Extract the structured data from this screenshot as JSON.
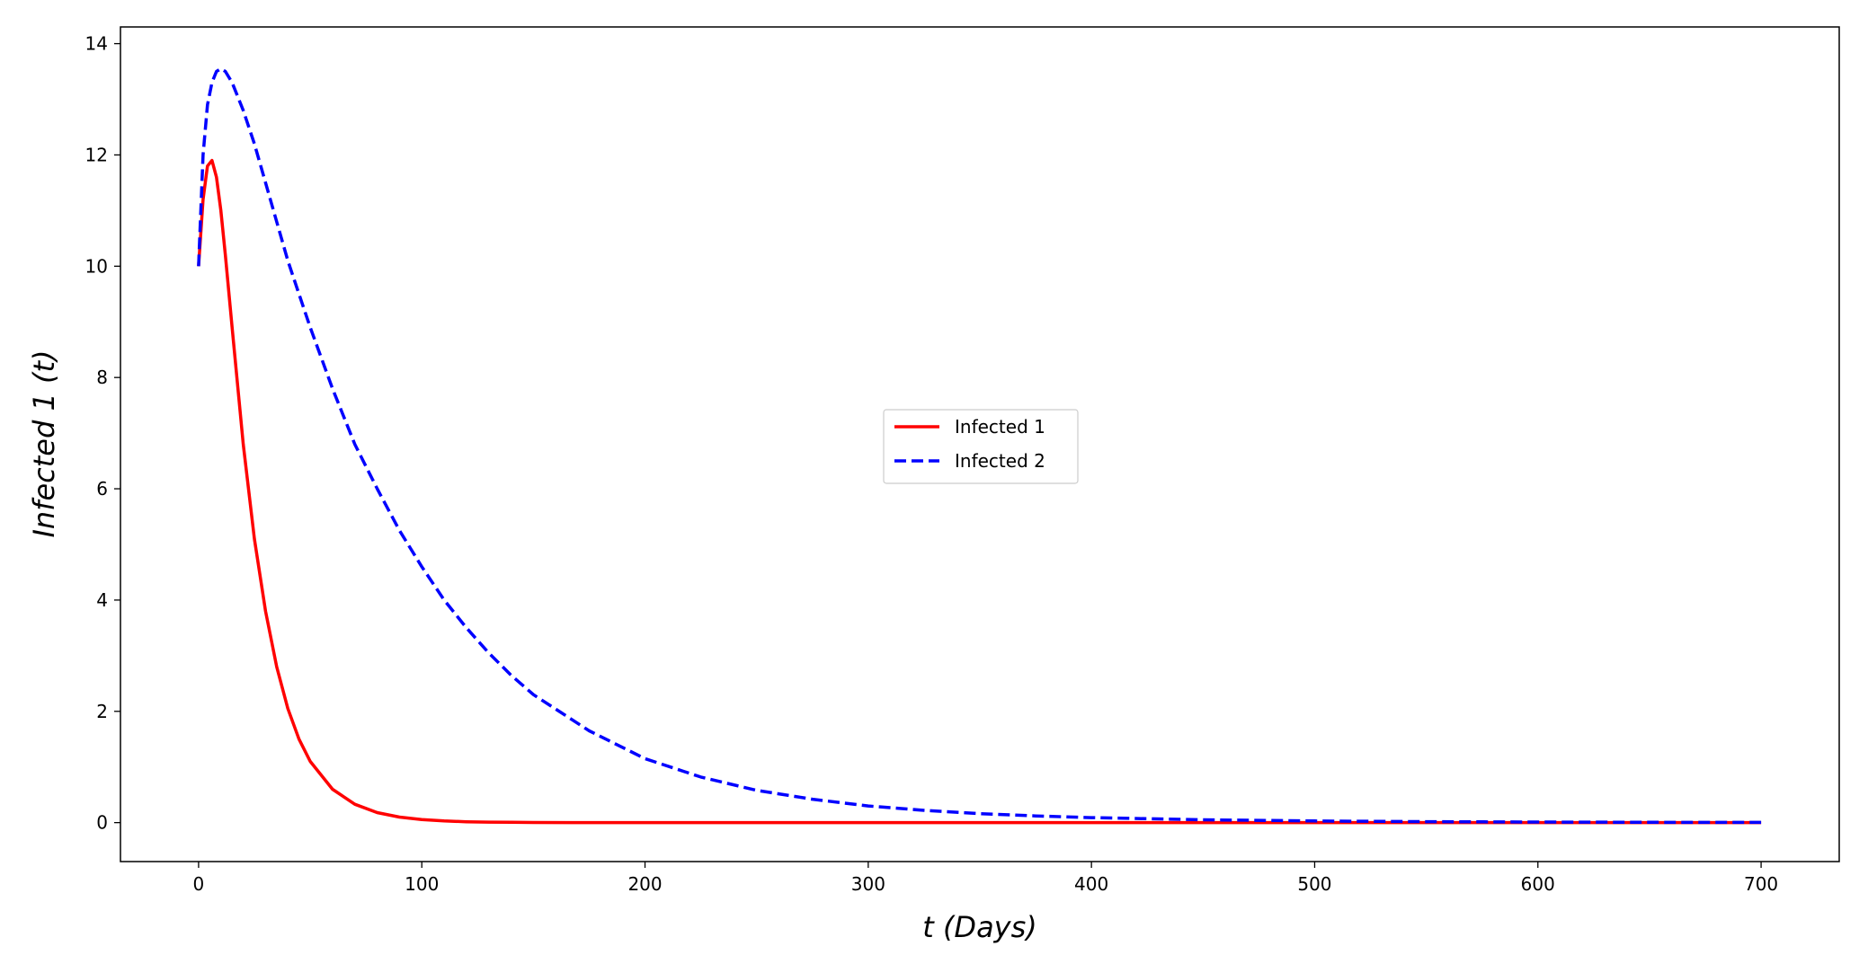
{
  "chart_data": {
    "type": "line",
    "title": "",
    "xlabel": "t (Days)",
    "ylabel": "Infected 1 (t)",
    "xlim": [
      -35,
      735
    ],
    "ylim": [
      -0.7,
      14.3
    ],
    "xticks": [
      0,
      100,
      200,
      300,
      400,
      500,
      600,
      700
    ],
    "yticks": [
      0,
      2,
      4,
      6,
      8,
      10,
      12,
      14
    ],
    "grid": false,
    "legend": {
      "placement": "center"
    },
    "x": [
      0,
      2,
      4,
      6,
      8,
      10,
      12,
      15,
      20,
      25,
      30,
      35,
      40,
      45,
      50,
      60,
      70,
      80,
      90,
      100,
      110,
      120,
      130,
      140,
      150,
      175,
      200,
      225,
      250,
      275,
      300,
      325,
      350,
      375,
      400,
      450,
      500,
      550,
      600,
      650,
      700
    ],
    "series": [
      {
        "name": "Infected 1",
        "color": "#ff0000",
        "style": "solid",
        "values": [
          10.0,
          11.2,
          11.8,
          11.9,
          11.6,
          11.0,
          10.2,
          8.9,
          6.8,
          5.1,
          3.8,
          2.8,
          2.05,
          1.5,
          1.1,
          0.6,
          0.33,
          0.18,
          0.1,
          0.055,
          0.03,
          0.016,
          0.009,
          0.005,
          0.003,
          0.001,
          0.0,
          0.0,
          0.0,
          0.0,
          0.0,
          0.0,
          0.0,
          0.0,
          0.0,
          0.0,
          0.0,
          0.0,
          0.0,
          0.0,
          0.0
        ]
      },
      {
        "name": "Infected 2",
        "color": "#0000ff",
        "style": "dashed",
        "values": [
          10.0,
          12.0,
          12.9,
          13.3,
          13.5,
          13.55,
          13.5,
          13.3,
          12.8,
          12.2,
          11.5,
          10.8,
          10.1,
          9.5,
          8.9,
          7.8,
          6.8,
          6.0,
          5.25,
          4.6,
          4.0,
          3.5,
          3.05,
          2.65,
          2.3,
          1.65,
          1.15,
          0.82,
          0.58,
          0.42,
          0.3,
          0.22,
          0.16,
          0.12,
          0.09,
          0.05,
          0.03,
          0.017,
          0.01,
          0.006,
          0.004
        ]
      }
    ]
  }
}
